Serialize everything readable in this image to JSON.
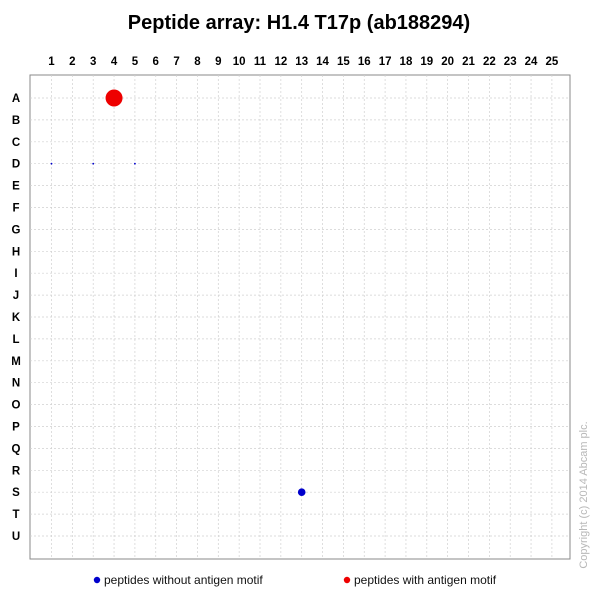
{
  "chart_data": {
    "type": "scatter",
    "title": "Peptide array: H1.4 T17p (ab188294)",
    "x_ticks": [
      "1",
      "2",
      "3",
      "4",
      "5",
      "6",
      "7",
      "8",
      "9",
      "10",
      "11",
      "12",
      "13",
      "14",
      "15",
      "16",
      "17",
      "18",
      "19",
      "20",
      "21",
      "22",
      "23",
      "24",
      "25"
    ],
    "y_ticks": [
      "A",
      "B",
      "C",
      "D",
      "E",
      "F",
      "G",
      "H",
      "I",
      "J",
      "K",
      "L",
      "M",
      "N",
      "O",
      "P",
      "Q",
      "R",
      "S",
      "T",
      "U"
    ],
    "grid": true,
    "legend_placement": "bottom",
    "series": [
      {
        "name": "peptides without antigen motif",
        "color": "#0000cc",
        "points": [
          {
            "x": "1",
            "y": "D",
            "size": 0.05
          },
          {
            "x": "3",
            "y": "D",
            "size": 0.05
          },
          {
            "x": "5",
            "y": "D",
            "size": 0.05
          },
          {
            "x": "13",
            "y": "S",
            "size": 0.45
          }
        ]
      },
      {
        "name": "peptides with antigen motif",
        "color": "#ee0000",
        "points": [
          {
            "x": "4",
            "y": "A",
            "size": 1.0
          }
        ]
      }
    ]
  },
  "copyright": "Copyright (c) 2014 Abcam plc."
}
